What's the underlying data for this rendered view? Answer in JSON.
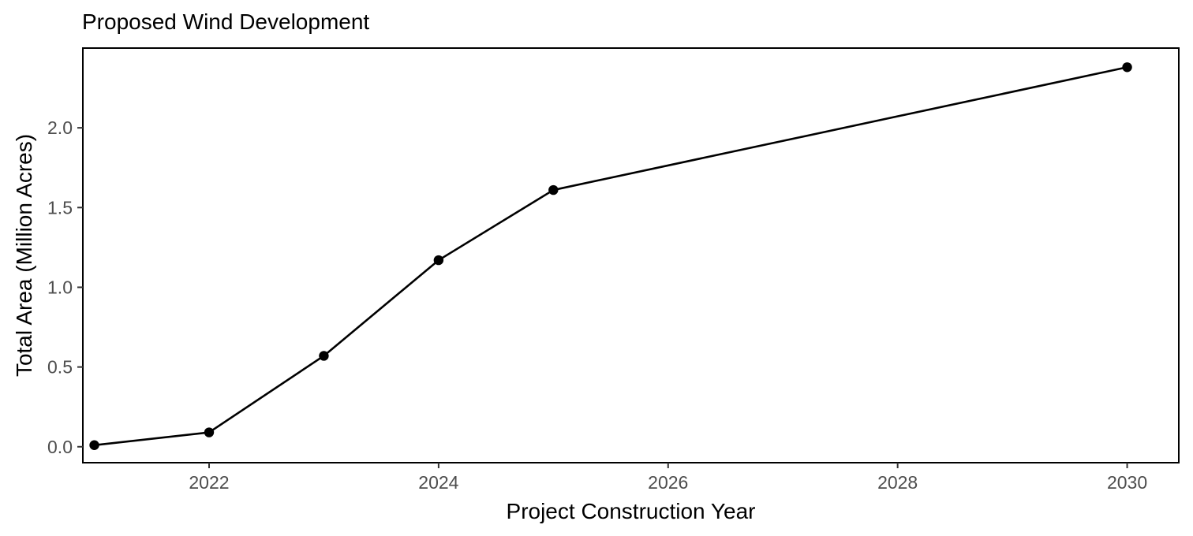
{
  "chart_data": {
    "type": "line",
    "title": "Proposed Wind Development",
    "xlabel": "Project Construction Year",
    "ylabel": "Total Area (Million Acres)",
    "xlim": [
      2020.9,
      2030.45
    ],
    "ylim": [
      -0.1,
      2.5
    ],
    "x_ticks": [
      2022,
      2024,
      2026,
      2028,
      2030
    ],
    "y_ticks": [
      0.0,
      0.5,
      1.0,
      1.5,
      2.0
    ],
    "y_tick_labels": [
      "0.0",
      "0.5",
      "1.0",
      "1.5",
      "2.0"
    ],
    "grid": false,
    "series": [
      {
        "x": [
          2021,
          2022,
          2023,
          2024,
          2025,
          2030
        ],
        "values": [
          0.01,
          0.09,
          0.57,
          1.17,
          1.61,
          2.38
        ]
      }
    ]
  }
}
